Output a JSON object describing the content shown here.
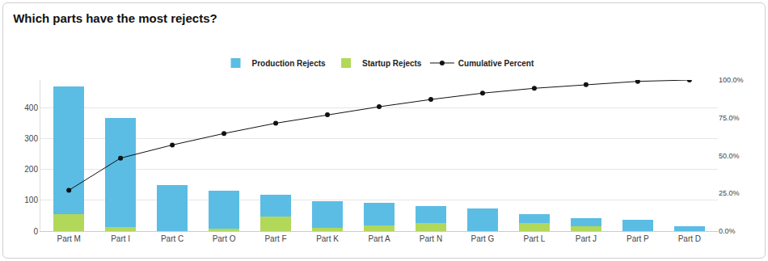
{
  "chart_data": {
    "type": "bar",
    "title": "Which parts have the most rejects?",
    "categories": [
      "Part M",
      "Part I",
      "Part C",
      "Part O",
      "Part F",
      "Part K",
      "Part A",
      "Part N",
      "Part G",
      "Part L",
      "Part J",
      "Part P",
      "Part D"
    ],
    "stacked": true,
    "grid": true,
    "legend": "top",
    "series": [
      {
        "name": "Production Rejects",
        "type": "bar",
        "color": "#5bbde4",
        "values": [
          413,
          355,
          150,
          124,
          71,
          86,
          74,
          56,
          74,
          29,
          27,
          37,
          16
        ]
      },
      {
        "name": "Startup Rejects",
        "type": "bar",
        "color": "#b2d85a",
        "values": [
          55,
          13,
          0,
          8,
          47,
          11,
          18,
          26,
          0,
          26,
          15,
          0,
          0
        ]
      },
      {
        "name": "Cumulative Percent",
        "type": "line",
        "axis": "y2",
        "color": "#111111",
        "marker": "circle",
        "values": [
          27.0,
          48.3,
          57.0,
          64.6,
          71.4,
          77.0,
          82.3,
          87.1,
          91.3,
          94.5,
          96.9,
          99.1,
          100
        ]
      }
    ],
    "ylim": [
      0,
      490
    ],
    "yticks": [
      0,
      100,
      200,
      300,
      400
    ],
    "y2lim": [
      0,
      100
    ],
    "y2ticks": [
      {
        "value": 0,
        "label": "0.0%"
      },
      {
        "value": 25,
        "label": "25.0%"
      },
      {
        "value": 50,
        "label": "50.0%"
      },
      {
        "value": 75,
        "label": "75.0%"
      },
      {
        "value": 100,
        "label": "100.0%"
      }
    ]
  }
}
